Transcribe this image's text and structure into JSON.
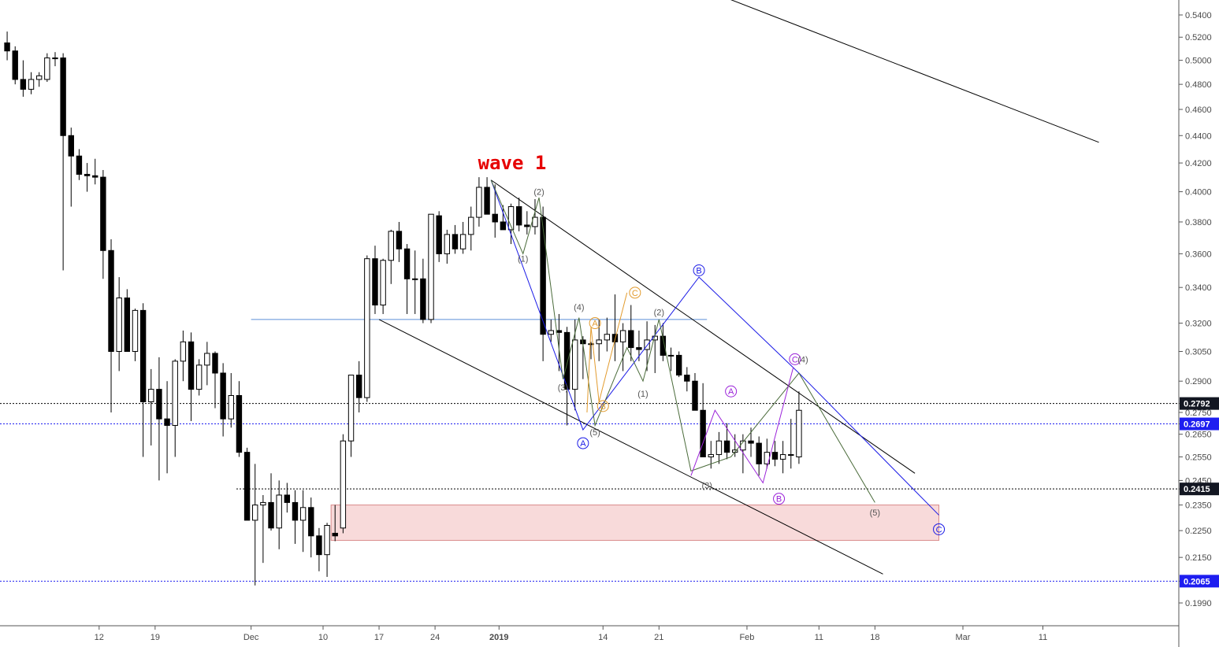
{
  "chart_data": {
    "type": "candlestick",
    "title": "wave 1",
    "y_scale": "log",
    "ylim": [
      0.187,
      0.56
    ],
    "y_ticks": [
      "0.1990",
      "0.2065",
      "0.2150",
      "0.2250",
      "0.2350",
      "0.2415",
      "0.2450",
      "0.2550",
      "0.2650",
      "0.2697",
      "0.2750",
      "0.2792",
      "0.2900",
      "0.3050",
      "0.3200",
      "0.3400",
      "0.3600",
      "0.3800",
      "0.4000",
      "0.4200",
      "0.4400",
      "0.4600",
      "0.4800",
      "0.5000",
      "0.5200",
      "0.5400"
    ],
    "x_ticks": [
      {
        "day": 12,
        "label": "12"
      },
      {
        "day": 19,
        "label": "19"
      },
      {
        "day": 31,
        "label": "Dec"
      },
      {
        "day": 40,
        "label": "10"
      },
      {
        "day": 47,
        "label": "17"
      },
      {
        "day": 54,
        "label": "24"
      },
      {
        "day": 62,
        "label": "2019"
      },
      {
        "day": 75,
        "label": "14"
      },
      {
        "day": 82,
        "label": "21"
      },
      {
        "day": 93,
        "label": "Feb"
      },
      {
        "day": 102,
        "label": "11"
      },
      {
        "day": 109,
        "label": "18"
      },
      {
        "day": 120,
        "label": "Mar"
      },
      {
        "day": 130,
        "label": "11"
      }
    ],
    "candles": [
      [
        0.515,
        0.525,
        0.5,
        0.508
      ],
      [
        0.508,
        0.512,
        0.48,
        0.484
      ],
      [
        0.484,
        0.5,
        0.47,
        0.476
      ],
      [
        0.476,
        0.49,
        0.472,
        0.484
      ],
      [
        0.484,
        0.49,
        0.478,
        0.487
      ],
      [
        0.484,
        0.506,
        0.482,
        0.502
      ],
      [
        0.502,
        0.507,
        0.495,
        0.502
      ],
      [
        0.502,
        0.506,
        0.35,
        0.44
      ],
      [
        0.44,
        0.446,
        0.39,
        0.425
      ],
      [
        0.425,
        0.43,
        0.408,
        0.412
      ],
      [
        0.412,
        0.42,
        0.4,
        0.411
      ],
      [
        0.411,
        0.423,
        0.405,
        0.41
      ],
      [
        0.41,
        0.415,
        0.345,
        0.362
      ],
      [
        0.362,
        0.369,
        0.275,
        0.305
      ],
      [
        0.305,
        0.346,
        0.295,
        0.334
      ],
      [
        0.334,
        0.339,
        0.305,
        0.305
      ],
      [
        0.305,
        0.328,
        0.3,
        0.327
      ],
      [
        0.327,
        0.331,
        0.255,
        0.28
      ],
      [
        0.28,
        0.296,
        0.26,
        0.286
      ],
      [
        0.286,
        0.302,
        0.245,
        0.272
      ],
      [
        0.272,
        0.29,
        0.248,
        0.269
      ],
      [
        0.269,
        0.301,
        0.255,
        0.3
      ],
      [
        0.3,
        0.316,
        0.29,
        0.31
      ],
      [
        0.31,
        0.315,
        0.271,
        0.286
      ],
      [
        0.286,
        0.301,
        0.283,
        0.298
      ],
      [
        0.298,
        0.31,
        0.288,
        0.304
      ],
      [
        0.304,
        0.305,
        0.277,
        0.294
      ],
      [
        0.294,
        0.299,
        0.264,
        0.272
      ],
      [
        0.272,
        0.294,
        0.268,
        0.283
      ],
      [
        0.283,
        0.29,
        0.255,
        0.257
      ],
      [
        0.257,
        0.259,
        0.23,
        0.229
      ],
      [
        0.229,
        0.252,
        0.205,
        0.235
      ],
      [
        0.235,
        0.239,
        0.213,
        0.236
      ],
      [
        0.236,
        0.248,
        0.225,
        0.226
      ],
      [
        0.226,
        0.245,
        0.218,
        0.239
      ],
      [
        0.239,
        0.244,
        0.232,
        0.236
      ],
      [
        0.236,
        0.241,
        0.22,
        0.229
      ],
      [
        0.229,
        0.241,
        0.217,
        0.234
      ],
      [
        0.234,
        0.238,
        0.215,
        0.223
      ],
      [
        0.223,
        0.226,
        0.21,
        0.216
      ],
      [
        0.216,
        0.228,
        0.208,
        0.227
      ],
      [
        0.224,
        0.235,
        0.221,
        0.223
      ],
      [
        0.226,
        0.265,
        0.224,
        0.262
      ],
      [
        0.262,
        0.292,
        0.255,
        0.293
      ],
      [
        0.293,
        0.3,
        0.275,
        0.282
      ],
      [
        0.282,
        0.359,
        0.28,
        0.357
      ],
      [
        0.357,
        0.365,
        0.325,
        0.33
      ],
      [
        0.33,
        0.357,
        0.325,
        0.356
      ],
      [
        0.356,
        0.375,
        0.342,
        0.374
      ],
      [
        0.374,
        0.38,
        0.355,
        0.363
      ],
      [
        0.363,
        0.366,
        0.325,
        0.345
      ],
      [
        0.345,
        0.362,
        0.325,
        0.345
      ],
      [
        0.345,
        0.357,
        0.32,
        0.322
      ],
      [
        0.322,
        0.385,
        0.32,
        0.385
      ],
      [
        0.384,
        0.387,
        0.355,
        0.36
      ],
      [
        0.36,
        0.375,
        0.354,
        0.372
      ],
      [
        0.372,
        0.378,
        0.36,
        0.363
      ],
      [
        0.363,
        0.38,
        0.36,
        0.372
      ],
      [
        0.372,
        0.39,
        0.362,
        0.383
      ],
      [
        0.383,
        0.41,
        0.377,
        0.403
      ],
      [
        0.403,
        0.41,
        0.385,
        0.385
      ],
      [
        0.385,
        0.405,
        0.37,
        0.38
      ],
      [
        0.38,
        0.391,
        0.375,
        0.375
      ],
      [
        0.375,
        0.392,
        0.366,
        0.39
      ],
      [
        0.39,
        0.396,
        0.374,
        0.378
      ],
      [
        0.378,
        0.387,
        0.372,
        0.377
      ],
      [
        0.377,
        0.395,
        0.372,
        0.383
      ],
      [
        0.383,
        0.39,
        0.3,
        0.314
      ],
      [
        0.314,
        0.322,
        0.31,
        0.316
      ],
      [
        0.316,
        0.325,
        0.295,
        0.315
      ],
      [
        0.315,
        0.318,
        0.269,
        0.286
      ],
      [
        0.286,
        0.322,
        0.276,
        0.311
      ],
      [
        0.311,
        0.313,
        0.291,
        0.309
      ],
      [
        0.309,
        0.31,
        0.301,
        0.309
      ],
      [
        0.309,
        0.322,
        0.3,
        0.311
      ],
      [
        0.311,
        0.323,
        0.305,
        0.314
      ],
      [
        0.314,
        0.336,
        0.3,
        0.31
      ],
      [
        0.31,
        0.32,
        0.295,
        0.316
      ],
      [
        0.316,
        0.33,
        0.3,
        0.307
      ],
      [
        0.307,
        0.316,
        0.3,
        0.306
      ],
      [
        0.306,
        0.321,
        0.295,
        0.311
      ],
      [
        0.311,
        0.319,
        0.294,
        0.313
      ],
      [
        0.313,
        0.32,
        0.3,
        0.303
      ],
      [
        0.303,
        0.307,
        0.295,
        0.303
      ],
      [
        0.303,
        0.305,
        0.292,
        0.293
      ],
      [
        0.293,
        0.297,
        0.285,
        0.29
      ],
      [
        0.29,
        0.294,
        0.276,
        0.276
      ],
      [
        0.276,
        0.289,
        0.255,
        0.255
      ],
      [
        0.255,
        0.262,
        0.25,
        0.256
      ],
      [
        0.256,
        0.266,
        0.252,
        0.262
      ],
      [
        0.262,
        0.27,
        0.254,
        0.257
      ],
      [
        0.257,
        0.265,
        0.255,
        0.258
      ],
      [
        0.258,
        0.265,
        0.248,
        0.262
      ],
      [
        0.262,
        0.268,
        0.255,
        0.261
      ],
      [
        0.261,
        0.264,
        0.247,
        0.252
      ],
      [
        0.252,
        0.263,
        0.25,
        0.257
      ],
      [
        0.257,
        0.262,
        0.251,
        0.254
      ],
      [
        0.254,
        0.262,
        0.248,
        0.256
      ],
      [
        0.256,
        0.272,
        0.25,
        0.256
      ],
      [
        0.255,
        0.285,
        0.252,
        0.276
      ]
    ],
    "price_lines": [
      {
        "value": 0.2792,
        "label": "0.2792",
        "color": "#000000",
        "style": "dotted",
        "tag_bg": "#131722"
      },
      {
        "value": 0.2697,
        "label": "0.2697",
        "color": "#1e1ef0",
        "style": "dotted",
        "tag_bg": "#1e1ef0"
      },
      {
        "value": 0.2415,
        "label": "0.2415",
        "color": "#000000",
        "style": "dotted",
        "tag_bg": "#131722"
      },
      {
        "value": 0.2065,
        "label": "0.2065",
        "color": "#1e1ef0",
        "style": "dotted",
        "tag_bg": "#1e1ef0"
      }
    ],
    "horizontal_segments": [
      {
        "x1": 31,
        "x2": 88,
        "y": 0.322,
        "color": "#5b8fd6"
      }
    ],
    "zone": {
      "x1": 41,
      "x2": 117,
      "y_top": 0.235,
      "y_bottom": 0.2213,
      "color": "#f4c2c2"
    },
    "trendlines": [
      {
        "x1": 89,
        "y1": 0.56,
        "x2": 137,
        "y2": 0.435,
        "color": "#000000"
      },
      {
        "x1": 61,
        "y1": 0.408,
        "x2": 114,
        "y2": 0.248,
        "color": "#000000"
      },
      {
        "x1": 47,
        "y1": 0.322,
        "x2": 110,
        "y2": 0.209,
        "color": "#000000"
      }
    ],
    "wave_paths": [
      {
        "color": "#1a1ae6",
        "points": [
          [
            61,
            0.408
          ],
          [
            72.5,
            0.267
          ],
          [
            87,
            0.346
          ],
          [
            99.5,
            0.294
          ],
          [
            117,
            0.231
          ]
        ]
      },
      {
        "color": "#4a6b3a",
        "points": [
          [
            61,
            0.408
          ],
          [
            65,
            0.36
          ],
          [
            67,
            0.396
          ],
          [
            70,
            0.291
          ],
          [
            72,
            0.323
          ],
          [
            74,
            0.269
          ],
          [
            78,
            0.307
          ],
          [
            80,
            0.29
          ],
          [
            82,
            0.322
          ],
          [
            86,
            0.249
          ],
          [
            91,
            0.255
          ],
          [
            99.5,
            0.294
          ],
          [
            109,
            0.236
          ]
        ]
      },
      {
        "color": "#e29b2e",
        "points": [
          [
            73,
            0.275
          ],
          [
            73.5,
            0.318
          ],
          [
            74.5,
            0.28
          ],
          [
            78,
            0.337
          ]
        ]
      },
      {
        "color": "#9b22d9",
        "points": [
          [
            86,
            0.247
          ],
          [
            89,
            0.276
          ],
          [
            95,
            0.244
          ],
          [
            98.8,
            0.297
          ]
        ]
      }
    ],
    "wave_labels": [
      {
        "x": 65,
        "y": 0.357,
        "text": "(1)",
        "color": "#555555",
        "circle": false
      },
      {
        "x": 67,
        "y": 0.4,
        "text": "(2)",
        "color": "#555555",
        "circle": false
      },
      {
        "x": 70,
        "y": 0.287,
        "text": "(3)",
        "color": "#555555",
        "circle": false
      },
      {
        "x": 72,
        "y": 0.329,
        "text": "(4)",
        "color": "#555555",
        "circle": false
      },
      {
        "x": 74,
        "y": 0.266,
        "text": "(5)",
        "color": "#555555",
        "circle": false
      },
      {
        "x": 72.5,
        "y": 0.261,
        "text": "A",
        "color": "#1a1ae6",
        "circle": true
      },
      {
        "x": 87,
        "y": 0.35,
        "text": "B",
        "color": "#1a1ae6",
        "circle": true
      },
      {
        "x": 99,
        "y": 0.301,
        "text": "C",
        "color": "#9b22d9",
        "circle": true
      },
      {
        "x": 117,
        "y": 0.2255,
        "text": "C",
        "color": "#1a1ae6",
        "circle": true
      },
      {
        "x": 74,
        "y": 0.32,
        "text": "A",
        "color": "#e29b2e",
        "circle": true
      },
      {
        "x": 75,
        "y": 0.278,
        "text": "B",
        "color": "#e29b2e",
        "circle": true
      },
      {
        "x": 79,
        "y": 0.337,
        "text": "C",
        "color": "#e29b2e",
        "circle": true
      },
      {
        "x": 80,
        "y": 0.284,
        "text": "(1)",
        "color": "#555555",
        "circle": false
      },
      {
        "x": 82,
        "y": 0.326,
        "text": "(2)",
        "color": "#555555",
        "circle": false
      },
      {
        "x": 88,
        "y": 0.243,
        "text": "(3)",
        "color": "#555555",
        "circle": false
      },
      {
        "x": 91,
        "y": 0.285,
        "text": "A",
        "color": "#9b22d9",
        "circle": true
      },
      {
        "x": 97,
        "y": 0.2375,
        "text": "B",
        "color": "#9b22d9",
        "circle": true
      },
      {
        "x": 100,
        "y": 0.301,
        "text": "(4)",
        "color": "#555555",
        "circle": false
      },
      {
        "x": 109,
        "y": 0.232,
        "text": "(5)",
        "color": "#555555",
        "circle": false
      }
    ]
  }
}
